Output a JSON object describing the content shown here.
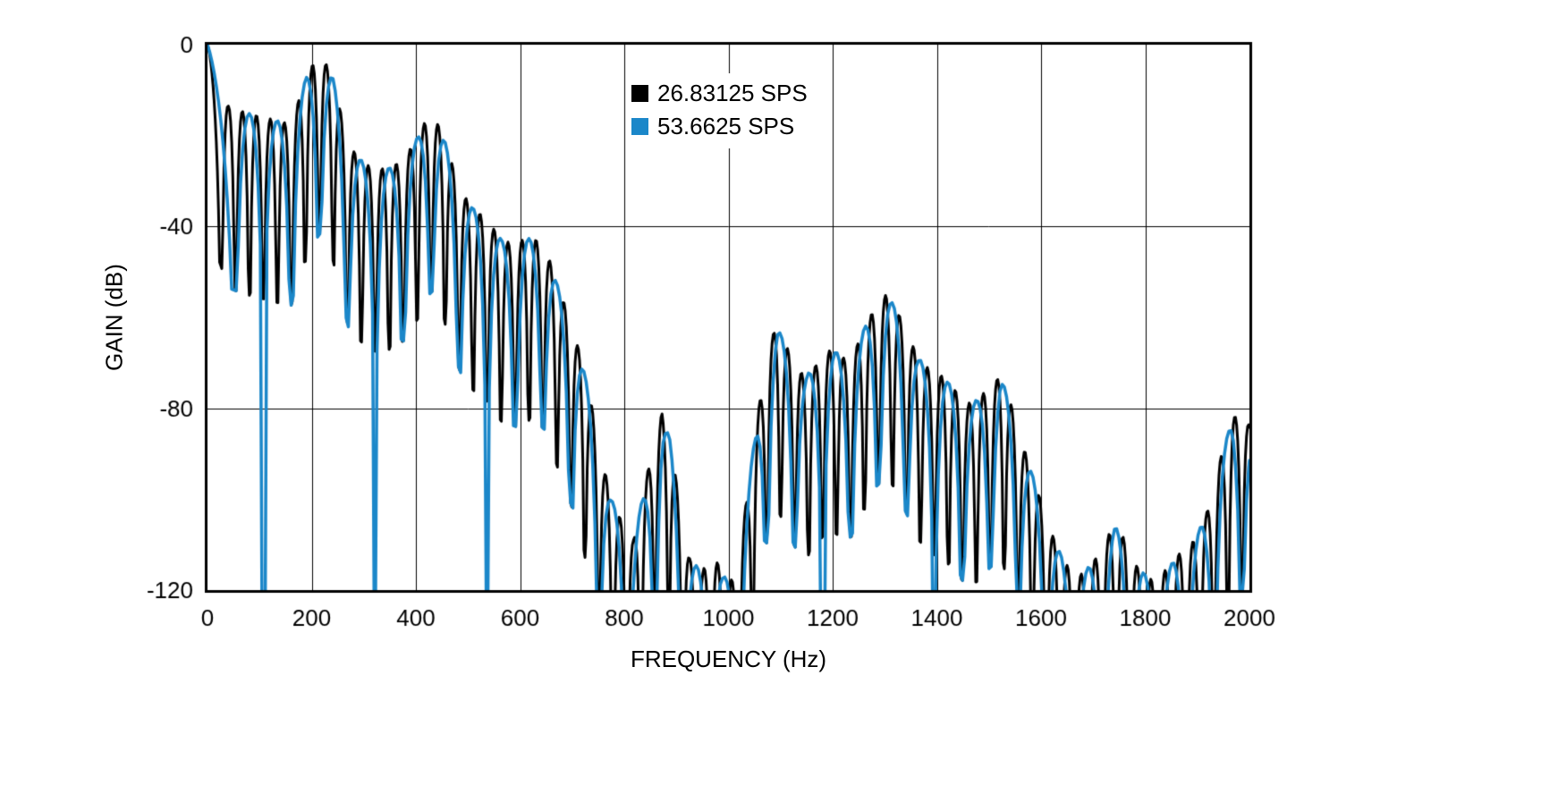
{
  "chart_data": {
    "type": "line",
    "title": "",
    "xlabel": "FREQUENCY (Hz)",
    "ylabel": "GAIN (dB)",
    "xlim": [
      0,
      2000
    ],
    "ylim": [
      -120,
      0
    ],
    "x_ticks": [
      0,
      200,
      400,
      600,
      800,
      1000,
      1200,
      1400,
      1600,
      1800,
      2000
    ],
    "x_tick_labels": [
      "0",
      "200",
      "400",
      "600",
      "800",
      "1000",
      "1200",
      "1400",
      "1600",
      "1800",
      "2000"
    ],
    "y_ticks": [
      0,
      -40,
      -80,
      -120
    ],
    "y_tick_labels": [
      "0",
      "-40",
      "-80",
      "-120"
    ],
    "grid": true,
    "legend": {
      "position": "inside-top-center",
      "entries": [
        "26.83125 SPS",
        "53.6625 SPS"
      ]
    },
    "lobe_exponent": 3,
    "lobe_floor_db_rel": -40,
    "envelope_db": [
      [
        0,
        0
      ],
      [
        40,
        -13.5
      ],
      [
        75,
        -15
      ],
      [
        110,
        -16
      ],
      [
        160,
        -17.5
      ],
      [
        190,
        -7
      ],
      [
        215,
        -1.5
      ],
      [
        240,
        -7
      ],
      [
        270,
        -22
      ],
      [
        300,
        -26
      ],
      [
        322,
        -27.5
      ],
      [
        352,
        -27
      ],
      [
        378,
        -25
      ],
      [
        405,
        -20
      ],
      [
        430,
        -14
      ],
      [
        458,
        -22
      ],
      [
        485,
        -32
      ],
      [
        510,
        -36
      ],
      [
        537,
        -38.5
      ],
      [
        565,
        -43
      ],
      [
        592,
        -44
      ],
      [
        610,
        -42.5
      ],
      [
        632,
        -43
      ],
      [
        650,
        -45
      ],
      [
        672,
        -53
      ],
      [
        695,
        -60
      ],
      [
        715,
        -68
      ],
      [
        735,
        -78
      ],
      [
        755,
        -90
      ],
      [
        775,
        -100
      ],
      [
        800,
        -106
      ],
      [
        818,
        -109
      ],
      [
        840,
        -97
      ],
      [
        858,
        -86
      ],
      [
        872,
        -81
      ],
      [
        888,
        -87
      ],
      [
        905,
        -100
      ],
      [
        925,
        -113
      ],
      [
        950,
        -116
      ],
      [
        968,
        -111
      ],
      [
        990,
        -117
      ],
      [
        1012,
        -118
      ],
      [
        1035,
        -100
      ],
      [
        1058,
        -80
      ],
      [
        1080,
        -65
      ],
      [
        1093,
        -62
      ],
      [
        1110,
        -66
      ],
      [
        1130,
        -71
      ],
      [
        1147,
        -73
      ],
      [
        1165,
        -71
      ],
      [
        1182,
        -68
      ],
      [
        1200,
        -67
      ],
      [
        1222,
        -69
      ],
      [
        1240,
        -68
      ],
      [
        1262,
        -62
      ],
      [
        1285,
        -57
      ],
      [
        1303,
        -55
      ],
      [
        1322,
        -58
      ],
      [
        1345,
        -64
      ],
      [
        1365,
        -69
      ],
      [
        1390,
        -72
      ],
      [
        1412,
        -73
      ],
      [
        1435,
        -76
      ],
      [
        1458,
        -79
      ],
      [
        1480,
        -78
      ],
      [
        1502,
        -75
      ],
      [
        1522,
        -73
      ],
      [
        1545,
        -80
      ],
      [
        1565,
        -88
      ],
      [
        1590,
        -97
      ],
      [
        1615,
        -106
      ],
      [
        1645,
        -114
      ],
      [
        1672,
        -117
      ],
      [
        1700,
        -114
      ],
      [
        1722,
        -109
      ],
      [
        1742,
        -106
      ],
      [
        1762,
        -109
      ],
      [
        1785,
        -115
      ],
      [
        1815,
        -118
      ],
      [
        1845,
        -115
      ],
      [
        1872,
        -111
      ],
      [
        1895,
        -109
      ],
      [
        1918,
        -103
      ],
      [
        1942,
        -92
      ],
      [
        1968,
        -82
      ],
      [
        1990,
        -81
      ],
      [
        2000,
        -84
      ]
    ],
    "series": [
      {
        "name": "26.83125 SPS",
        "color": "#000000",
        "data_rate_sps": 26.83125,
        "null_spacing_hz": 26.83125,
        "line_width": 3
      },
      {
        "name": "53.6625 SPS",
        "color": "#1b87c9",
        "data_rate_sps": 53.6625,
        "null_spacing_hz": 53.6625,
        "line_width": 3.5,
        "deep_notches_hz": [
          107.325,
          321.975,
          536.625,
          751.275,
          965.925,
          1180.575,
          1395.225,
          1609.875,
          1824.525
        ]
      }
    ]
  },
  "colors": {
    "background": "#ffffff",
    "grid": "#000000",
    "axis": "#000000",
    "tick_text": "#000000"
  }
}
